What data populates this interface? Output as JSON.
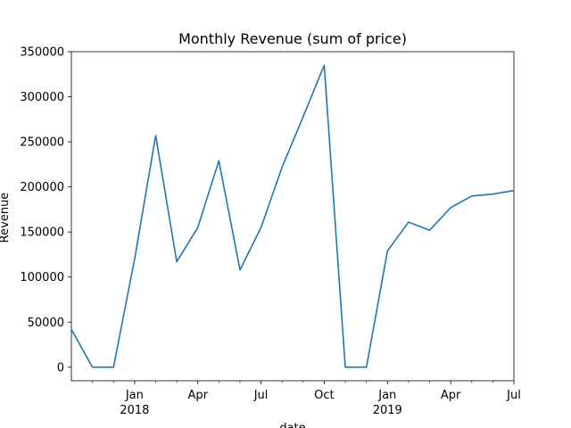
{
  "chart_data": {
    "type": "line",
    "title": "Monthly Revenue (sum of price)",
    "xlabel": "date",
    "ylabel": "Revenue",
    "ylim": [
      -15000,
      350000
    ],
    "xlim": [
      "2017-10",
      "2019-07"
    ],
    "grid": false,
    "y_ticks": [
      0,
      50000,
      100000,
      150000,
      200000,
      250000,
      300000,
      350000
    ],
    "y_tick_labels": [
      "0",
      "50000",
      "100000",
      "150000",
      "200000",
      "250000",
      "300000",
      "350000"
    ],
    "x_major_ticks": [
      {
        "date": "2018-01",
        "label": "Jan",
        "year": "2018"
      },
      {
        "date": "2018-04",
        "label": "Apr",
        "year": ""
      },
      {
        "date": "2018-07",
        "label": "Jul",
        "year": ""
      },
      {
        "date": "2018-10",
        "label": "Oct",
        "year": ""
      },
      {
        "date": "2019-01",
        "label": "Jan",
        "year": "2019"
      },
      {
        "date": "2019-04",
        "label": "Apr",
        "year": ""
      },
      {
        "date": "2019-07",
        "label": "Jul",
        "year": ""
      }
    ],
    "x_minor_ticks": [
      "2017-11",
      "2017-12",
      "2018-02",
      "2018-03",
      "2018-05",
      "2018-06",
      "2018-08",
      "2018-09",
      "2018-11",
      "2018-12",
      "2019-02",
      "2019-03",
      "2019-05",
      "2019-06"
    ],
    "series": [
      {
        "color": "#1f77b4",
        "x": [
          "2017-10",
          "2017-11",
          "2017-12",
          "2018-01",
          "2018-02",
          "2018-03",
          "2018-04",
          "2018-05",
          "2018-06",
          "2018-07",
          "2018-08",
          "2018-09",
          "2018-10",
          "2018-11",
          "2018-12",
          "2019-01",
          "2019-02",
          "2019-03",
          "2019-04",
          "2019-05",
          "2019-06",
          "2019-07"
        ],
        "values": [
          42000,
          0,
          0,
          120000,
          257000,
          117000,
          155000,
          229000,
          108000,
          155000,
          222000,
          278000,
          335000,
          0,
          0,
          129000,
          161000,
          152000,
          177000,
          190000,
          192000,
          196000
        ]
      }
    ]
  }
}
